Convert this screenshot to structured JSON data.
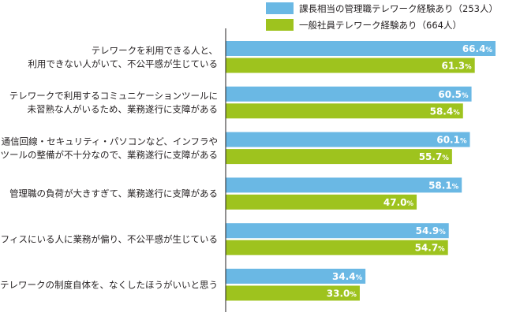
{
  "chart_data": {
    "type": "bar",
    "orientation": "horizontal",
    "categories": [
      [
        "テレワークを利用できる人と、",
        "利用できない人がいて、不公平感が生じている"
      ],
      [
        "テレワークで利用するコミュニケーションツールに",
        "未習熟な人がいるため、業務遂行に支障がある"
      ],
      [
        "通信回線・セキュリティ・パソコンなど、インフラや",
        "ツールの整備が不十分なので、業務遂行に支障がある"
      ],
      [
        "管理職の負荷が大きすぎて、業務遂行に支障がある"
      ],
      [
        "オフィスにいる人に業務が偏り、不公平感が生じている"
      ],
      [
        "テレワークの制度自体を、なくしたほうがいいと思う"
      ]
    ],
    "series": [
      {
        "name": "課長相当の管理職テレワーク経験あり（253人）",
        "color": "#6ab8e4",
        "values": [
          66.4,
          60.5,
          60.1,
          58.1,
          54.9,
          34.4
        ]
      },
      {
        "name": "一般社員テレワーク経験あり（664人）",
        "color": "#9ec31e",
        "values": [
          61.3,
          58.4,
          55.7,
          47.0,
          54.7,
          33.0
        ]
      }
    ],
    "value_suffix": "%",
    "xlim": [
      0,
      70
    ],
    "legend_position": "top-right",
    "grid": false
  }
}
